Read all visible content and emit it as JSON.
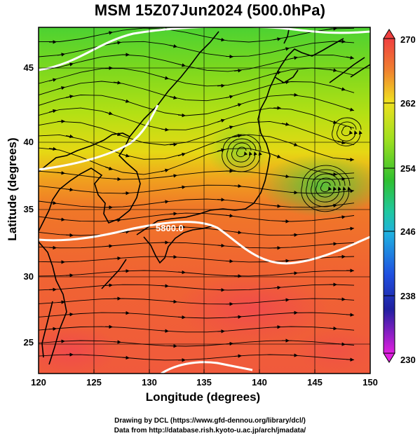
{
  "title": "MSM 15Z07Jun2024 (500.0hPa)",
  "axes": {
    "xlabel": "Longitude (degrees)",
    "ylabel": "Latitude  (degrees)",
    "x_ticks": [
      "120",
      "125",
      "130",
      "135",
      "140",
      "145",
      "150"
    ],
    "y_ticks": [
      "25",
      "30",
      "35",
      "40",
      "45"
    ]
  },
  "colorbar": {
    "labels": [
      "270",
      "262",
      "254",
      "246",
      "238",
      "230"
    ],
    "min": 230,
    "max": 270
  },
  "contour_label": "5800.0",
  "credits": {
    "line1": "Drawing by DCL (https://www.gfd-dennou.org/library/dcl/)",
    "line2": "Data from http://database.rish.kyoto-u.ac.jp/arch/jmadata/"
  },
  "map_data": {
    "variable": "temperature (K) with wind streamlines and geopotential height contours",
    "lon_range": [
      120,
      150
    ],
    "lat_range": [
      22.4,
      47.6
    ],
    "contour_lines": [
      {
        "level": "5800.0"
      }
    ]
  }
}
